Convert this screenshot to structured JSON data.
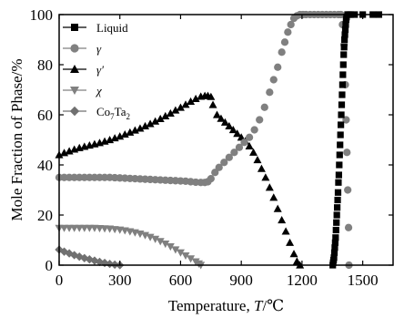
{
  "chart_data": {
    "type": "scatter",
    "xlabel_prefix": "Temperature, ",
    "xlabel_var": "T",
    "xlabel_unit": "/℃",
    "ylabel": "Mole Fraction of Phase/%",
    "xlim": [
      0,
      1650
    ],
    "ylim": [
      0,
      100
    ],
    "xticks": [
      0,
      300,
      600,
      900,
      1200,
      1500
    ],
    "yticks": [
      0,
      20,
      40,
      60,
      80,
      100
    ],
    "grid": false,
    "legend_position": "top-left",
    "series": [
      {
        "name": "Liquid",
        "marker": "square",
        "color": "#000000",
        "x": [
          1352,
          1354,
          1356,
          1358,
          1360,
          1362,
          1364,
          1366,
          1368,
          1370,
          1372,
          1374,
          1376,
          1378,
          1380,
          1382,
          1384,
          1386,
          1388,
          1390,
          1392,
          1394,
          1396,
          1398,
          1400,
          1402,
          1404,
          1406,
          1408,
          1410,
          1412,
          1414,
          1416,
          1418,
          1420,
          1425,
          1430,
          1440,
          1460,
          1500,
          1550,
          1580
        ],
        "y": [
          0,
          1,
          2,
          3,
          5,
          7,
          9,
          11,
          14,
          17,
          20,
          23,
          26,
          29,
          33,
          36,
          40,
          44,
          48,
          52,
          56,
          60,
          64,
          68,
          72,
          76,
          80,
          84,
          87,
          90,
          92,
          94,
          96,
          98,
          99,
          100,
          100,
          100,
          100,
          100,
          100,
          100
        ]
      },
      {
        "name": "γ",
        "marker": "circle",
        "color": "#808080",
        "x": [
          0,
          25,
          50,
          75,
          100,
          125,
          150,
          175,
          200,
          225,
          250,
          275,
          300,
          325,
          350,
          375,
          400,
          425,
          450,
          475,
          500,
          525,
          550,
          575,
          600,
          625,
          650,
          675,
          700,
          720,
          735,
          750,
          770,
          790,
          815,
          840,
          865,
          890,
          915,
          940,
          965,
          990,
          1015,
          1040,
          1060,
          1080,
          1100,
          1115,
          1130,
          1145,
          1160,
          1175,
          1190,
          1205,
          1220,
          1240,
          1260,
          1280,
          1300,
          1320,
          1340,
          1360,
          1380,
          1392,
          1400,
          1408,
          1414,
          1418,
          1422,
          1426,
          1430,
          1432
        ],
        "y": [
          35,
          35,
          35,
          35,
          35,
          35,
          35,
          35,
          35,
          35,
          35,
          34.9,
          34.8,
          34.7,
          34.6,
          34.5,
          34.4,
          34.3,
          34.2,
          34.1,
          34.0,
          33.9,
          33.8,
          33.7,
          33.6,
          33.5,
          33.3,
          33.1,
          33.0,
          33.0,
          33.3,
          34.5,
          37,
          39,
          41,
          43,
          45,
          47,
          49,
          51,
          54,
          58,
          63,
          69,
          74,
          79,
          85,
          89,
          93,
          96,
          98.5,
          99.5,
          100,
          100,
          100,
          100,
          100,
          100,
          100,
          100,
          100,
          100,
          100,
          100,
          96,
          88,
          72,
          58,
          45,
          30,
          15,
          0
        ]
      },
      {
        "name": "γ′",
        "marker": "triangle-up",
        "color": "#000000",
        "x": [
          0,
          25,
          50,
          75,
          100,
          125,
          150,
          175,
          200,
          225,
          250,
          275,
          300,
          325,
          350,
          375,
          400,
          425,
          450,
          475,
          500,
          525,
          550,
          575,
          600,
          625,
          650,
          675,
          700,
          720,
          735,
          750,
          760,
          780,
          800,
          820,
          840,
          860,
          880,
          900,
          920,
          940,
          960,
          980,
          1000,
          1020,
          1040,
          1060,
          1080,
          1100,
          1120,
          1140,
          1160,
          1175,
          1190
        ],
        "y": [
          44,
          44.8,
          45.5,
          46.2,
          46.8,
          47.3,
          47.8,
          48.3,
          48.8,
          49.4,
          50.0,
          50.7,
          51.4,
          52.2,
          53.0,
          53.8,
          54.6,
          55.5,
          56.4,
          57.4,
          58.4,
          59.5,
          60.6,
          61.8,
          62.9,
          64.1,
          65.3,
          66.4,
          67.3,
          67.6,
          67.6,
          67.2,
          64,
          60,
          58.5,
          57,
          55.5,
          54,
          52.5,
          51,
          49.5,
          47.5,
          45,
          42,
          38.5,
          35,
          31,
          27,
          22.5,
          18,
          13.5,
          9,
          4.5,
          1.5,
          0
        ]
      },
      {
        "name": "χ",
        "marker": "triangle-down",
        "color": "#808080",
        "x": [
          0,
          25,
          50,
          75,
          100,
          125,
          150,
          175,
          200,
          225,
          250,
          275,
          300,
          325,
          350,
          375,
          400,
          425,
          450,
          475,
          500,
          525,
          550,
          575,
          600,
          625,
          650,
          675,
          690,
          700
        ],
        "y": [
          14.8,
          14.8,
          14.8,
          14.8,
          14.8,
          14.8,
          14.8,
          14.8,
          14.7,
          14.6,
          14.5,
          14.3,
          14.1,
          13.8,
          13.4,
          13.0,
          12.5,
          11.9,
          11.2,
          10.4,
          9.5,
          8.5,
          7.4,
          6.2,
          5.0,
          3.8,
          2.6,
          1.4,
          0.6,
          0
        ]
      },
      {
        "name": "Co7Ta2",
        "name_main": "Co",
        "name_sub1": "7",
        "name_mid": "Ta",
        "name_sub2": "2",
        "marker": "diamond",
        "color": "#707070",
        "x": [
          0,
          25,
          50,
          75,
          100,
          125,
          150,
          175,
          200,
          225,
          250,
          275,
          300
        ],
        "y": [
          6.2,
          5.4,
          4.7,
          4.0,
          3.4,
          2.8,
          2.3,
          1.8,
          1.3,
          0.9,
          0.5,
          0.2,
          0
        ]
      }
    ]
  }
}
